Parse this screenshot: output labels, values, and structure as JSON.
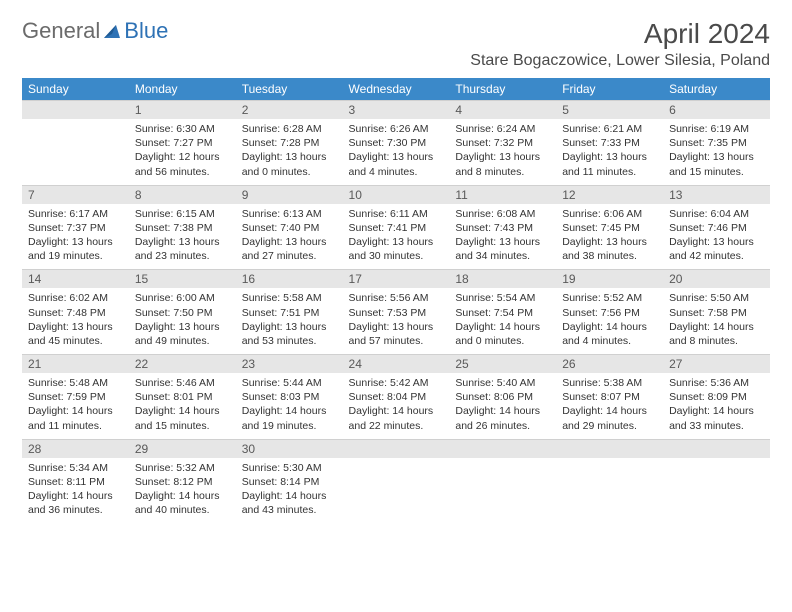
{
  "brand": {
    "part1": "General",
    "part2": "Blue"
  },
  "colors": {
    "header_bg": "#3b89c9",
    "header_text": "#ffffff",
    "daynum_bg": "#e6e6e6",
    "daynum_text": "#595959",
    "body_text": "#333333",
    "title_text": "#4a4a4a",
    "logo_gray": "#6b6b6b",
    "logo_blue": "#2e72b5"
  },
  "title": "April 2024",
  "location": "Stare Bogaczowice, Lower Silesia, Poland",
  "day_headers": [
    "Sunday",
    "Monday",
    "Tuesday",
    "Wednesday",
    "Thursday",
    "Friday",
    "Saturday"
  ],
  "weeks": [
    {
      "nums": [
        "",
        "1",
        "2",
        "3",
        "4",
        "5",
        "6"
      ],
      "details": [
        {},
        {
          "sunrise": "Sunrise: 6:30 AM",
          "sunset": "Sunset: 7:27 PM",
          "day1": "Daylight: 12 hours",
          "day2": "and 56 minutes."
        },
        {
          "sunrise": "Sunrise: 6:28 AM",
          "sunset": "Sunset: 7:28 PM",
          "day1": "Daylight: 13 hours",
          "day2": "and 0 minutes."
        },
        {
          "sunrise": "Sunrise: 6:26 AM",
          "sunset": "Sunset: 7:30 PM",
          "day1": "Daylight: 13 hours",
          "day2": "and 4 minutes."
        },
        {
          "sunrise": "Sunrise: 6:24 AM",
          "sunset": "Sunset: 7:32 PM",
          "day1": "Daylight: 13 hours",
          "day2": "and 8 minutes."
        },
        {
          "sunrise": "Sunrise: 6:21 AM",
          "sunset": "Sunset: 7:33 PM",
          "day1": "Daylight: 13 hours",
          "day2": "and 11 minutes."
        },
        {
          "sunrise": "Sunrise: 6:19 AM",
          "sunset": "Sunset: 7:35 PM",
          "day1": "Daylight: 13 hours",
          "day2": "and 15 minutes."
        }
      ]
    },
    {
      "nums": [
        "7",
        "8",
        "9",
        "10",
        "11",
        "12",
        "13"
      ],
      "details": [
        {
          "sunrise": "Sunrise: 6:17 AM",
          "sunset": "Sunset: 7:37 PM",
          "day1": "Daylight: 13 hours",
          "day2": "and 19 minutes."
        },
        {
          "sunrise": "Sunrise: 6:15 AM",
          "sunset": "Sunset: 7:38 PM",
          "day1": "Daylight: 13 hours",
          "day2": "and 23 minutes."
        },
        {
          "sunrise": "Sunrise: 6:13 AM",
          "sunset": "Sunset: 7:40 PM",
          "day1": "Daylight: 13 hours",
          "day2": "and 27 minutes."
        },
        {
          "sunrise": "Sunrise: 6:11 AM",
          "sunset": "Sunset: 7:41 PM",
          "day1": "Daylight: 13 hours",
          "day2": "and 30 minutes."
        },
        {
          "sunrise": "Sunrise: 6:08 AM",
          "sunset": "Sunset: 7:43 PM",
          "day1": "Daylight: 13 hours",
          "day2": "and 34 minutes."
        },
        {
          "sunrise": "Sunrise: 6:06 AM",
          "sunset": "Sunset: 7:45 PM",
          "day1": "Daylight: 13 hours",
          "day2": "and 38 minutes."
        },
        {
          "sunrise": "Sunrise: 6:04 AM",
          "sunset": "Sunset: 7:46 PM",
          "day1": "Daylight: 13 hours",
          "day2": "and 42 minutes."
        }
      ]
    },
    {
      "nums": [
        "14",
        "15",
        "16",
        "17",
        "18",
        "19",
        "20"
      ],
      "details": [
        {
          "sunrise": "Sunrise: 6:02 AM",
          "sunset": "Sunset: 7:48 PM",
          "day1": "Daylight: 13 hours",
          "day2": "and 45 minutes."
        },
        {
          "sunrise": "Sunrise: 6:00 AM",
          "sunset": "Sunset: 7:50 PM",
          "day1": "Daylight: 13 hours",
          "day2": "and 49 minutes."
        },
        {
          "sunrise": "Sunrise: 5:58 AM",
          "sunset": "Sunset: 7:51 PM",
          "day1": "Daylight: 13 hours",
          "day2": "and 53 minutes."
        },
        {
          "sunrise": "Sunrise: 5:56 AM",
          "sunset": "Sunset: 7:53 PM",
          "day1": "Daylight: 13 hours",
          "day2": "and 57 minutes."
        },
        {
          "sunrise": "Sunrise: 5:54 AM",
          "sunset": "Sunset: 7:54 PM",
          "day1": "Daylight: 14 hours",
          "day2": "and 0 minutes."
        },
        {
          "sunrise": "Sunrise: 5:52 AM",
          "sunset": "Sunset: 7:56 PM",
          "day1": "Daylight: 14 hours",
          "day2": "and 4 minutes."
        },
        {
          "sunrise": "Sunrise: 5:50 AM",
          "sunset": "Sunset: 7:58 PM",
          "day1": "Daylight: 14 hours",
          "day2": "and 8 minutes."
        }
      ]
    },
    {
      "nums": [
        "21",
        "22",
        "23",
        "24",
        "25",
        "26",
        "27"
      ],
      "details": [
        {
          "sunrise": "Sunrise: 5:48 AM",
          "sunset": "Sunset: 7:59 PM",
          "day1": "Daylight: 14 hours",
          "day2": "and 11 minutes."
        },
        {
          "sunrise": "Sunrise: 5:46 AM",
          "sunset": "Sunset: 8:01 PM",
          "day1": "Daylight: 14 hours",
          "day2": "and 15 minutes."
        },
        {
          "sunrise": "Sunrise: 5:44 AM",
          "sunset": "Sunset: 8:03 PM",
          "day1": "Daylight: 14 hours",
          "day2": "and 19 minutes."
        },
        {
          "sunrise": "Sunrise: 5:42 AM",
          "sunset": "Sunset: 8:04 PM",
          "day1": "Daylight: 14 hours",
          "day2": "and 22 minutes."
        },
        {
          "sunrise": "Sunrise: 5:40 AM",
          "sunset": "Sunset: 8:06 PM",
          "day1": "Daylight: 14 hours",
          "day2": "and 26 minutes."
        },
        {
          "sunrise": "Sunrise: 5:38 AM",
          "sunset": "Sunset: 8:07 PM",
          "day1": "Daylight: 14 hours",
          "day2": "and 29 minutes."
        },
        {
          "sunrise": "Sunrise: 5:36 AM",
          "sunset": "Sunset: 8:09 PM",
          "day1": "Daylight: 14 hours",
          "day2": "and 33 minutes."
        }
      ]
    },
    {
      "nums": [
        "28",
        "29",
        "30",
        "",
        "",
        "",
        ""
      ],
      "details": [
        {
          "sunrise": "Sunrise: 5:34 AM",
          "sunset": "Sunset: 8:11 PM",
          "day1": "Daylight: 14 hours",
          "day2": "and 36 minutes."
        },
        {
          "sunrise": "Sunrise: 5:32 AM",
          "sunset": "Sunset: 8:12 PM",
          "day1": "Daylight: 14 hours",
          "day2": "and 40 minutes."
        },
        {
          "sunrise": "Sunrise: 5:30 AM",
          "sunset": "Sunset: 8:14 PM",
          "day1": "Daylight: 14 hours",
          "day2": "and 43 minutes."
        },
        {},
        {},
        {},
        {}
      ]
    }
  ]
}
